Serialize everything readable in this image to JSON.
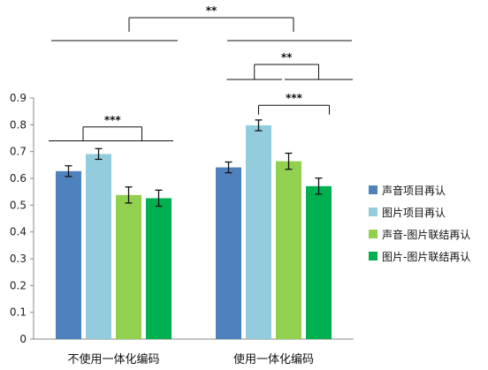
{
  "chart_data": {
    "type": "bar",
    "categories": [
      "不使用一体化编码",
      "使用一体化编码"
    ],
    "series": [
      {
        "name": "声音项目再认",
        "color": "#4f81bd",
        "values": [
          0.627,
          0.641
        ],
        "errors": [
          0.02,
          0.02
        ]
      },
      {
        "name": "图片项目再认",
        "color": "#93cddd",
        "values": [
          0.691,
          0.798
        ],
        "errors": [
          0.02,
          0.02
        ]
      },
      {
        "name": "声音-图片联结再认",
        "color": "#92d050",
        "values": [
          0.538,
          0.664
        ],
        "errors": [
          0.03,
          0.03
        ]
      },
      {
        "name": "图片-图片联结再认",
        "color": "#00b050",
        "values": [
          0.526,
          0.571
        ],
        "errors": [
          0.03,
          0.03
        ]
      }
    ],
    "ylim": [
      0,
      0.9
    ],
    "yticks": [
      "0",
      "0.1",
      "0.2",
      "0.3",
      "0.4",
      "0.5",
      "0.6",
      "0.7",
      "0.8",
      "0.9"
    ],
    "legend_position": "right",
    "grid": false,
    "annotations": [
      {
        "label": "**",
        "meaning": "between the two encoding conditions"
      },
      {
        "label": "***",
        "meaning": "item vs associative recognition, 不使用一体化编码"
      },
      {
        "label": "**",
        "meaning": "item vs associative recognition, 使用一体化编码"
      },
      {
        "label": "***",
        "meaning": "图片项目再认 vs 图片-图片联结再认, 使用一体化编码"
      }
    ]
  }
}
